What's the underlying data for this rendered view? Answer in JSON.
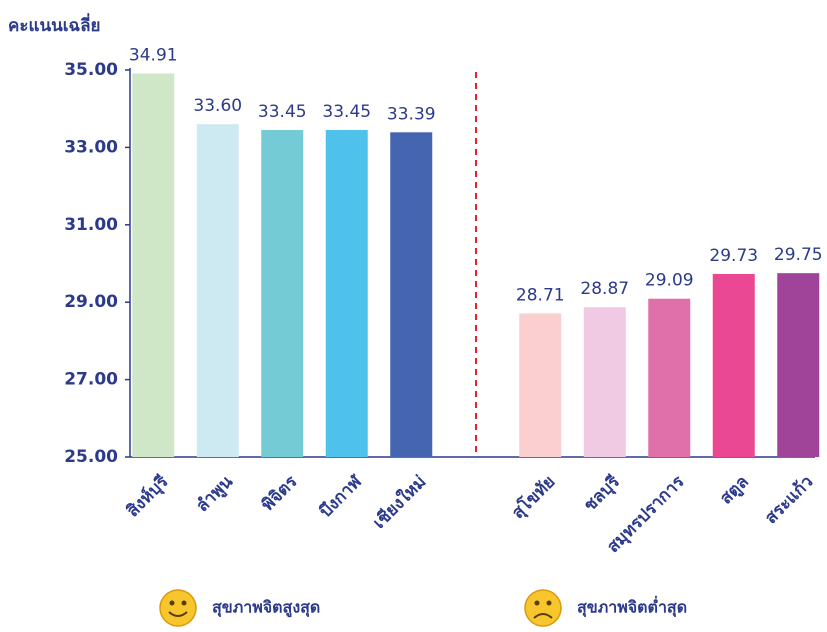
{
  "chart_data": {
    "type": "bar",
    "y_axis_label": "คะแนนเฉลี่ย",
    "categories": [
      "สิงห์บุรี",
      "ลำพูน",
      "พิจิตร",
      "บึงกาฬ",
      "เชียงใหม่",
      null,
      "สุโขทัย",
      "ชลบุรี",
      "สมุทรปราการ",
      "สตูล",
      "สระแก้ว"
    ],
    "values": [
      34.91,
      33.6,
      33.45,
      33.45,
      33.39,
      null,
      28.71,
      28.87,
      29.09,
      29.73,
      29.75
    ],
    "value_labels": [
      "34.91",
      "33.60",
      "33.45",
      "33.45",
      "33.39",
      null,
      "28.71",
      "28.87",
      "29.09",
      "29.73",
      "29.75"
    ],
    "colors": [
      "#cfe7c6",
      "#cde9f1",
      "#74cbd6",
      "#4fc2ec",
      "#4565b0",
      null,
      "#fbcfcf",
      "#efcae2",
      "#e070aa",
      "#ea4892",
      "#a0449a"
    ],
    "ylim": [
      25,
      35
    ],
    "yticks": [
      {
        "value": 25,
        "label": "25.00"
      },
      {
        "value": 27,
        "label": "27.00"
      },
      {
        "value": 29,
        "label": "29.00"
      },
      {
        "value": 31,
        "label": "31.00"
      },
      {
        "value": 33,
        "label": "33.00"
      },
      {
        "value": 35,
        "label": "35.00"
      }
    ],
    "legend": [
      "สุขภาพจิตสูงสุด",
      "สุขภาพจิตต่ำสุด"
    ]
  }
}
